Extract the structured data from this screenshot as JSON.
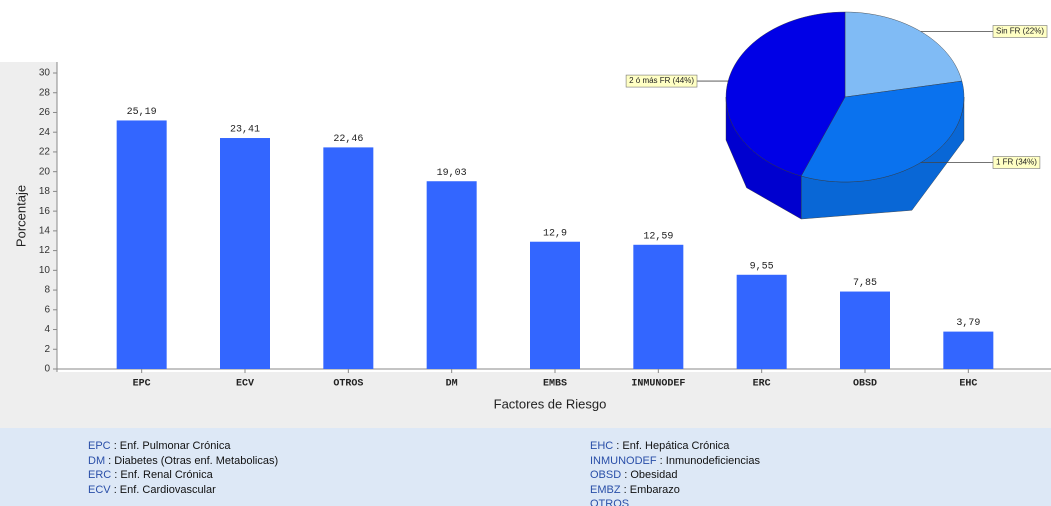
{
  "chart_data": [
    {
      "type": "bar",
      "x_label": "Factores de Riesgo",
      "y_label": "Porcentaje",
      "categories": [
        "EPC",
        "ECV",
        "OTROS",
        "DM",
        "EMBS",
        "INMUNODEF",
        "ERC",
        "OBSD",
        "EHC"
      ],
      "values": [
        25.19,
        23.41,
        22.46,
        19.03,
        12.9,
        12.59,
        9.55,
        7.85,
        3.79
      ],
      "value_labels": [
        "25,19",
        "23,41",
        "22,46",
        "19,03",
        "12,9",
        "12,59",
        "9,55",
        "7,85",
        "3,79"
      ],
      "color": "#3366ff",
      "ylim": [
        0,
        30
      ],
      "yticks": [
        0,
        2,
        4,
        6,
        8,
        10,
        12,
        14,
        16,
        18,
        20,
        22,
        24,
        26,
        28,
        30
      ]
    },
    {
      "type": "pie",
      "categories": [
        "Sin FR",
        "1 FR",
        "2 ó más FR"
      ],
      "values": [
        22,
        34,
        44
      ],
      "value_labels": [
        "Sin FR (22%)",
        "1 FR (34%)",
        "2 ó más FR (44%)"
      ],
      "colors": [
        "#80bbf5",
        "#0a72ee",
        "#0000e6"
      ]
    }
  ],
  "glossary": {
    "left": [
      {
        "code": "EPC",
        "description": ": Enf. Pulmonar Crónica"
      },
      {
        "code": "DM",
        "description": ": Diabetes (Otras enf. Metabolicas)"
      },
      {
        "code": "ERC",
        "description": ": Enf. Renal Crónica"
      },
      {
        "code": "ECV",
        "description": ": Enf. Cardiovascular"
      }
    ],
    "right": [
      {
        "code": "EHC",
        "description": ": Enf. Hepática Crónica"
      },
      {
        "code": "INMUNODEF",
        "description": ": Inmunodeficiencias"
      },
      {
        "code": "OBSD",
        "description": ": Obesidad"
      },
      {
        "code": "EMBZ",
        "description": ": Embarazo"
      },
      {
        "code": "OTROS"
      }
    ]
  }
}
